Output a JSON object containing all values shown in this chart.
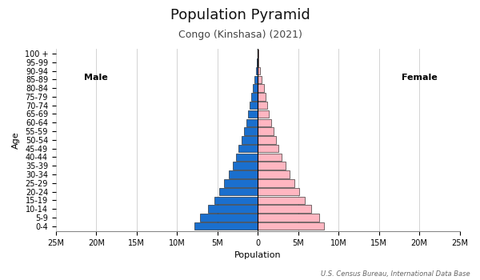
{
  "title": "Population Pyramid",
  "subtitle": "Congo (Kinshasa) (2021)",
  "xlabel": "Population",
  "ylabel": "Age",
  "source": "U.S. Census Bureau, International Data Base",
  "age_groups": [
    "0-4",
    "5-9",
    "10-14",
    "15-19",
    "20-24",
    "25-29",
    "30-34",
    "35-39",
    "40-44",
    "45-49",
    "50-54",
    "55-59",
    "60-64",
    "65-69",
    "70-74",
    "75-79",
    "80-84",
    "85-89",
    "90-94",
    "95-99",
    "100 +"
  ],
  "male": [
    7800000,
    7100000,
    6200000,
    5400000,
    4800000,
    4200000,
    3600000,
    3100000,
    2700000,
    2350000,
    2000000,
    1700000,
    1450000,
    1200000,
    1000000,
    820000,
    620000,
    430000,
    230000,
    95000,
    41000
  ],
  "female": [
    8200000,
    7600000,
    6600000,
    5800000,
    5150000,
    4550000,
    3950000,
    3450000,
    3000000,
    2600000,
    2250000,
    1950000,
    1650000,
    1400000,
    1150000,
    960000,
    740000,
    520000,
    290000,
    125000,
    55000
  ],
  "male_color": "#1a6fce",
  "female_color": "#ffb6c1",
  "bar_edgecolor": "#111111",
  "xlim": 25000000,
  "xticks": [
    -25000000,
    -20000000,
    -15000000,
    -10000000,
    -5000000,
    0,
    5000000,
    10000000,
    15000000,
    20000000,
    25000000
  ],
  "xtick_labels": [
    "25M",
    "20M",
    "15M",
    "10M",
    "5M",
    "0",
    "5M",
    "10M",
    "15M",
    "20M",
    "25M"
  ],
  "male_label": "Male",
  "female_label": "Female",
  "bg_color": "#ffffff",
  "grid_color": "#cccccc",
  "title_fontsize": 13,
  "subtitle_fontsize": 9,
  "label_fontsize": 8,
  "tick_fontsize": 7
}
